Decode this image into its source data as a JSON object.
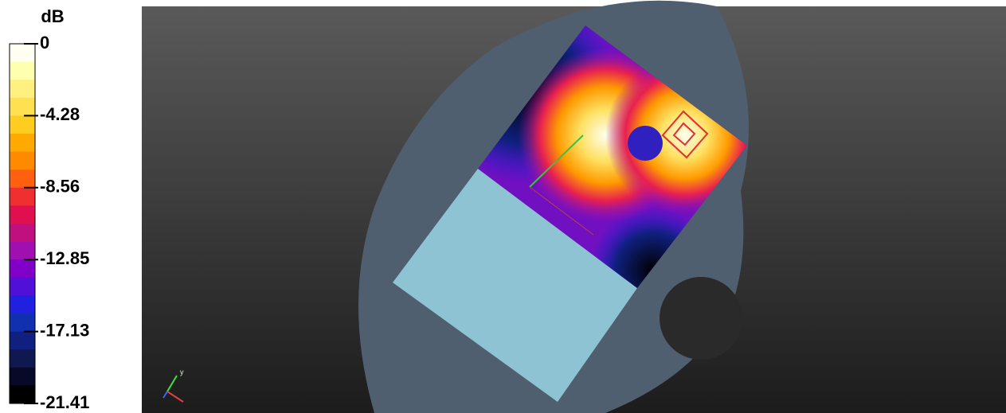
{
  "colorbar": {
    "unit": "dB",
    "lim": [
      0,
      -21.41
    ],
    "ticks": [
      0,
      -4.28,
      -8.56,
      -12.85,
      -17.13,
      -21.41
    ],
    "colors": [
      "#fffff2",
      "#ffffb0",
      "#fff080",
      "#ffe050",
      "#ffcc20",
      "#ffaa00",
      "#ff8a00",
      "#ff6010",
      "#f03030",
      "#e01050",
      "#c01080",
      "#a010b0",
      "#8000c8",
      "#5010d8",
      "#2020e0",
      "#1030b0",
      "#102080",
      "#101850",
      "#080828",
      "#000000"
    ]
  },
  "viewport": {
    "axis_label": "y"
  }
}
